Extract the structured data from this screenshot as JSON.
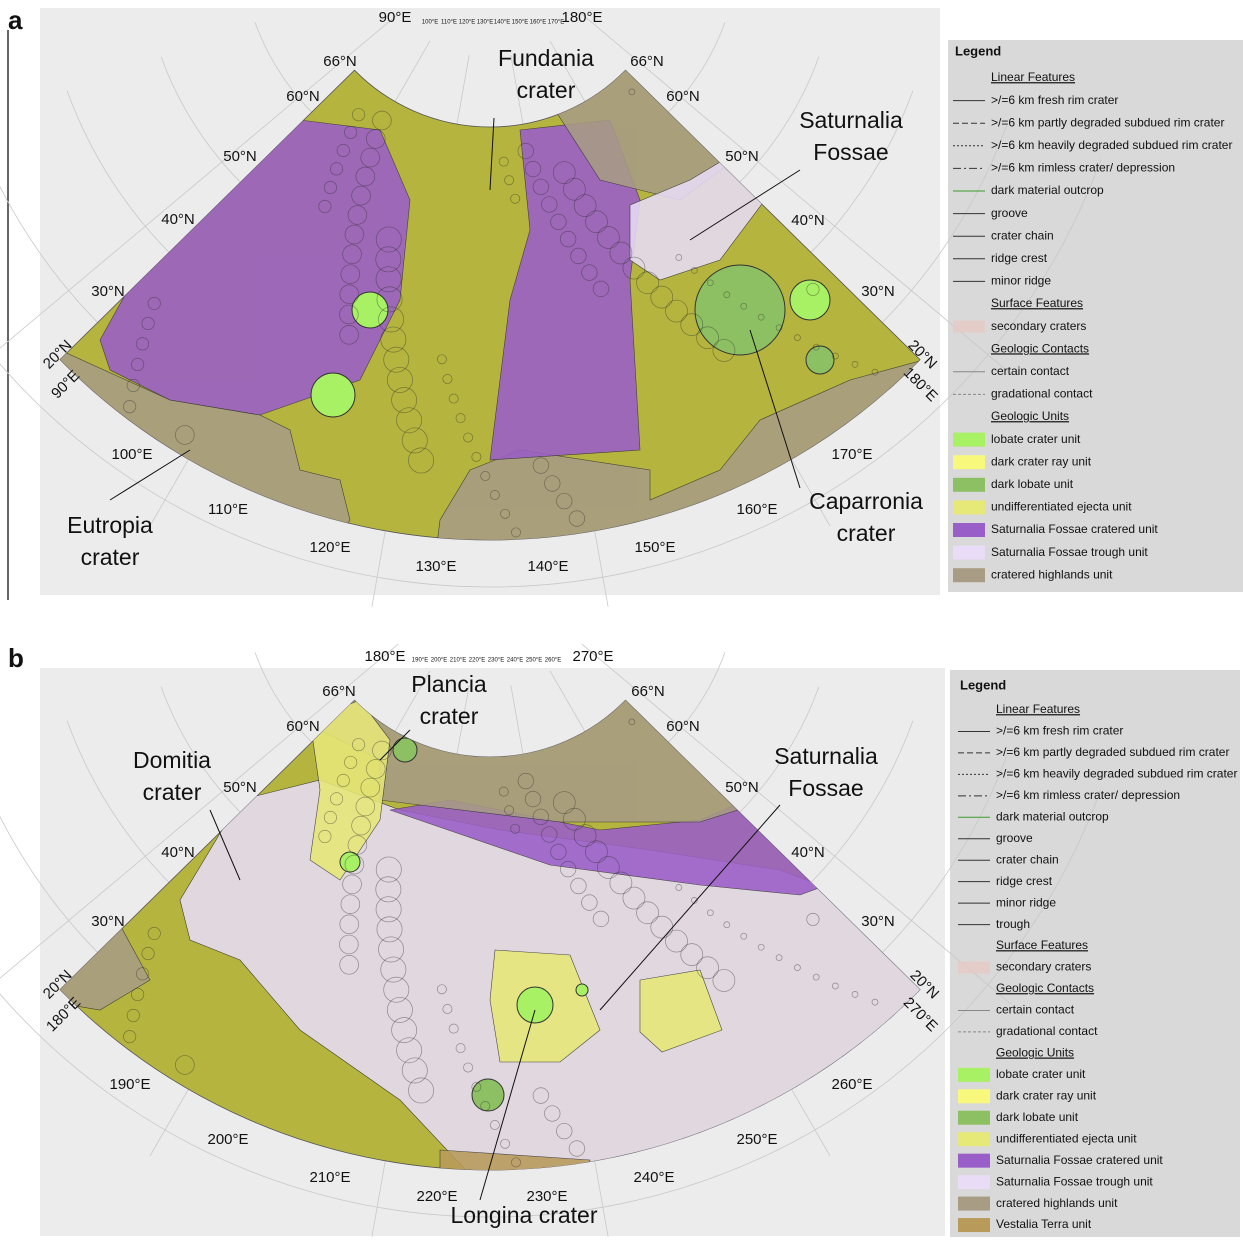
{
  "panels": [
    {
      "letter": "a",
      "map": {
        "lat_labels": [
          "66°N",
          "60°N",
          "50°N",
          "40°N",
          "30°N",
          "20°N",
          "66°N",
          "60°N",
          "50°N",
          "40°N",
          "30°N",
          "20°N"
        ],
        "lon_labels": [
          "90°E",
          "180°E",
          "90°E",
          "100°E",
          "110°E",
          "120°E",
          "130°E",
          "140°E",
          "150°E",
          "160°E",
          "170°E",
          "180°E"
        ],
        "small_lon_labels": [
          "100°E",
          "110°E",
          "120°E",
          "130°E",
          "140°E",
          "150°E",
          "160°E",
          "170°E"
        ],
        "feature_labels": [
          [
            "Fundania",
            "crater"
          ],
          [
            "Saturnalia",
            "Fossae"
          ],
          [
            "Eutropia",
            "crater"
          ],
          [
            "Caparronia",
            "crater"
          ]
        ]
      },
      "legend": {
        "title": "Legend",
        "sections": [
          {
            "heading": "Linear Features",
            "items": [
              ">/=6 km fresh rim crater",
              ">/=6 km partly degraded subdued rim crater",
              ">/=6 km heavily degraded subdued rim crater",
              ">/=6 km rimless crater/ depression",
              "dark material outcrop",
              "groove",
              "crater chain",
              "ridge crest",
              "minor ridge"
            ]
          },
          {
            "heading": "Surface Features",
            "items": [
              "secondary craters"
            ]
          },
          {
            "heading": "Geologic Contacts",
            "items": [
              "certain contact",
              "gradational contact"
            ]
          },
          {
            "heading": "Geologic Units",
            "items": [
              {
                "label": "lobate crater unit",
                "color": "#a8f064"
              },
              {
                "label": "dark crater ray unit",
                "color": "#f8f87c"
              },
              {
                "label": "dark lobate unit",
                "color": "#8cc062"
              },
              {
                "label": "undifferentiated ejecta unit",
                "color": "#e6e878"
              },
              {
                "label": "Saturnalia Fossae cratered unit",
                "color": "#9a5ec8"
              },
              {
                "label": "Saturnalia Fossae trough unit",
                "color": "#e8dcf6"
              },
              {
                "label": "cratered highlands unit",
                "color": "#a89c84"
              }
            ]
          }
        ]
      }
    },
    {
      "letter": "b",
      "map": {
        "lat_labels": [
          "66°N",
          "60°N",
          "50°N",
          "40°N",
          "30°N",
          "20°N",
          "66°N",
          "60°N",
          "50°N",
          "40°N",
          "30°N",
          "20°N"
        ],
        "lon_labels": [
          "180°E",
          "270°E",
          "180°E",
          "190°E",
          "200°E",
          "210°E",
          "220°E",
          "230°E",
          "240°E",
          "250°E",
          "260°E",
          "270°E"
        ],
        "small_lon_labels": [
          "190°E",
          "200°E",
          "210°E",
          "220°E",
          "230°E",
          "240°E",
          "250°E",
          "260°E"
        ],
        "feature_labels": [
          [
            "Plancia",
            "crater"
          ],
          [
            "Domitia",
            "crater"
          ],
          [
            "Saturnalia",
            "Fossae"
          ],
          [
            "Longina crater"
          ]
        ]
      },
      "legend": {
        "title": "Legend",
        "sections": [
          {
            "heading": "Linear Features",
            "items": [
              ">/=6 km fresh rim crater",
              ">/=6 km partly degraded subdued rim crater",
              ">/=6 km heavily degraded subdued rim crater",
              ">/=6 km rimless crater/ depression",
              "dark material outcrop",
              "groove",
              "crater chain",
              "ridge crest",
              "minor ridge",
              "trough"
            ]
          },
          {
            "heading": "Surface Features",
            "items": [
              "secondary craters"
            ]
          },
          {
            "heading": "Geologic Contacts",
            "items": [
              "certain contact",
              "gradational contact"
            ]
          },
          {
            "heading": "Geologic Units",
            "items": [
              {
                "label": "lobate crater unit",
                "color": "#a8f064"
              },
              {
                "label": "dark crater ray unit",
                "color": "#f8f87c"
              },
              {
                "label": "dark lobate unit",
                "color": "#8cc062"
              },
              {
                "label": "undifferentiated ejecta unit",
                "color": "#e6e878"
              },
              {
                "label": "Saturnalia Fossae cratered unit",
                "color": "#9a5ec8"
              },
              {
                "label": "Saturnalia Fossae trough unit",
                "color": "#e8dcf6"
              },
              {
                "label": "cratered highlands unit",
                "color": "#a89c84"
              },
              {
                "label": "Vestalia Terra unit",
                "color": "#b89a5a"
              }
            ]
          }
        ]
      }
    }
  ]
}
